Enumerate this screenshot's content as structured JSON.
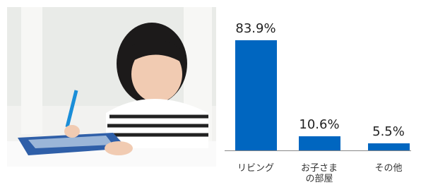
{
  "chart_data": {
    "type": "bar",
    "categories": [
      "リビング",
      "お子さまの部屋",
      "その他"
    ],
    "values": [
      83.9,
      10.6,
      5.5
    ],
    "value_labels": [
      "83.9%",
      "10.6%",
      "5.5%"
    ],
    "color": "#0066c0"
  }
}
